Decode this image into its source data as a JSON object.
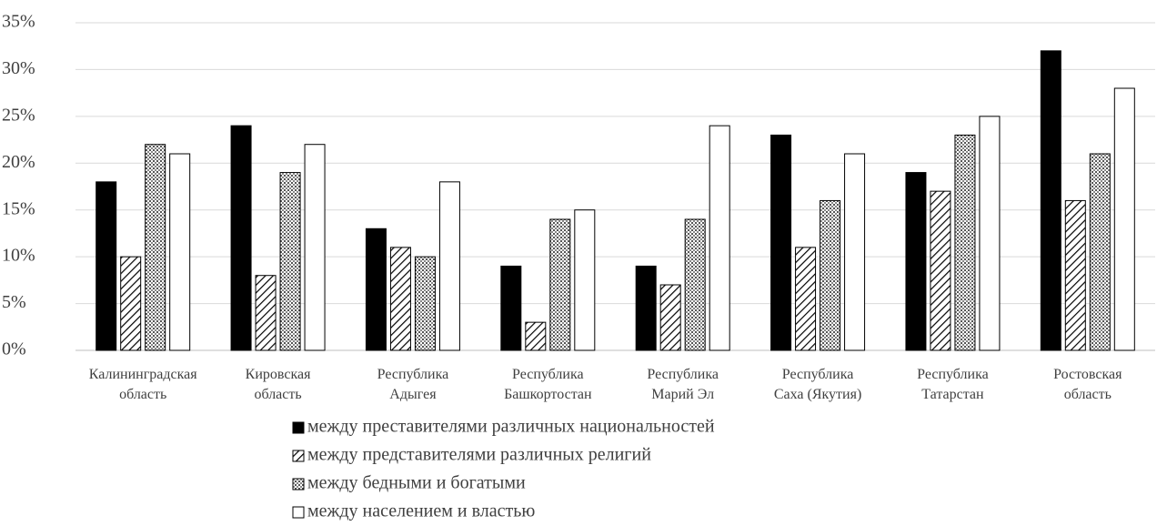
{
  "chart_data": {
    "type": "bar",
    "categories": [
      [
        "Калининградская",
        "область"
      ],
      [
        "Кировская",
        "область"
      ],
      [
        "Республика",
        "Адыгея"
      ],
      [
        "Республика",
        "Башкортостан"
      ],
      [
        "Республика",
        "Марий Эл"
      ],
      [
        "Республика",
        "Саха (Якутия)"
      ],
      [
        "Республика",
        "Татарстан"
      ],
      [
        "Ростовская",
        "область"
      ]
    ],
    "series": [
      {
        "name": "между преставителями различных национальностей",
        "color": "#000000",
        "pattern": "solid",
        "values": [
          18,
          24,
          13,
          9,
          9,
          23,
          19,
          32
        ]
      },
      {
        "name": "между представителями различных религий",
        "color": "#000000",
        "pattern": "hatch",
        "values": [
          10,
          8,
          11,
          3,
          7,
          11,
          17,
          16
        ]
      },
      {
        "name": "между бедными и богатыми",
        "color": "#000000",
        "pattern": "dots",
        "values": [
          22,
          19,
          10,
          14,
          14,
          16,
          23,
          21
        ]
      },
      {
        "name": "между населением и властью",
        "color": "#000000",
        "pattern": "none",
        "values": [
          21,
          22,
          18,
          15,
          24,
          21,
          25,
          28
        ]
      }
    ],
    "ylim": [
      0,
      35
    ],
    "yticks": [
      {
        "value": 0,
        "label": "0%"
      },
      {
        "value": 5,
        "label": "5%"
      },
      {
        "value": 10,
        "label": "10%"
      },
      {
        "value": 15,
        "label": "15%"
      },
      {
        "value": 20,
        "label": "20%"
      },
      {
        "value": 25,
        "label": "25%"
      },
      {
        "value": 30,
        "label": "30%"
      },
      {
        "value": 35,
        "label": "35%"
      }
    ],
    "grid": true,
    "legend": "bottom"
  }
}
